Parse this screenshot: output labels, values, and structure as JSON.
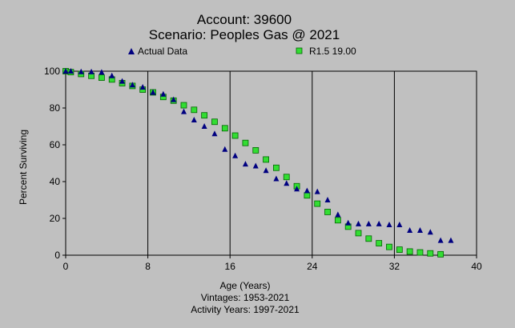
{
  "chart_data": {
    "type": "scatter",
    "title": "Account: 39600",
    "subtitle": "Scenario: Peoples Gas @ 2021",
    "xlabel": "Age (Years)",
    "ylabel": "Percent Surviving",
    "footnotes": [
      "Vintages: 1953-2021",
      "Activity Years: 1997-2021"
    ],
    "xlim": [
      0,
      40
    ],
    "ylim": [
      0,
      100
    ],
    "x_ticks": [
      0,
      8,
      16,
      24,
      32,
      40
    ],
    "y_ticks": [
      0,
      20,
      40,
      60,
      80,
      100
    ],
    "grid": "vertical lines at x ticks",
    "legend_position": "top",
    "series": [
      {
        "name": "Actual Data",
        "marker": "triangle",
        "color": "#000080",
        "x": [
          0,
          0.5,
          1.5,
          2.5,
          3.5,
          4.5,
          5.5,
          6.5,
          7.5,
          8.5,
          9.5,
          10.5,
          11.5,
          12.5,
          13.5,
          14.5,
          15.5,
          16.5,
          17.5,
          18.5,
          19.5,
          20.5,
          21.5,
          22.5,
          23.5,
          24.5,
          25.5,
          26.5,
          27.5,
          28.5,
          29.5,
          30.5,
          31.5,
          32.5,
          33.5,
          34.5,
          35.5,
          36.5,
          37.5
        ],
        "y": [
          100,
          100,
          99.7,
          99.6,
          99.4,
          97.5,
          94.5,
          92.5,
          91.3,
          88.5,
          87.5,
          84.5,
          78,
          73.5,
          70,
          66,
          57.5,
          54,
          49.5,
          48.5,
          46,
          41.5,
          39,
          36,
          35,
          34.5,
          30,
          22,
          17.5,
          17,
          17,
          17,
          16.5,
          16.5,
          13.5,
          13.5,
          12.5,
          8,
          8
        ]
      },
      {
        "name": "R1.5 19.00",
        "marker": "square",
        "color": "#33dd33",
        "x": [
          0,
          0.5,
          1.5,
          2.5,
          3.5,
          4.5,
          5.5,
          6.5,
          7.5,
          8.5,
          9.5,
          10.5,
          11.5,
          12.5,
          13.5,
          14.5,
          15.5,
          16.5,
          17.5,
          18.5,
          19.5,
          20.5,
          21.5,
          22.5,
          23.5,
          24.5,
          25.5,
          26.5,
          27.5,
          28.5,
          29.5,
          30.5,
          31.5,
          32.5,
          33.5,
          34.5,
          35.5,
          36.5
        ],
        "y": [
          100,
          99.5,
          98.5,
          97.5,
          96.5,
          95.5,
          93.5,
          92,
          90,
          88.5,
          86,
          84,
          81.5,
          79,
          76,
          72.5,
          69,
          65,
          61,
          57,
          52,
          47.5,
          42.5,
          37.5,
          32.5,
          28,
          23.5,
          19,
          15.5,
          12,
          9,
          6.5,
          4.5,
          3,
          2,
          1.5,
          1,
          0.5
        ]
      }
    ]
  }
}
